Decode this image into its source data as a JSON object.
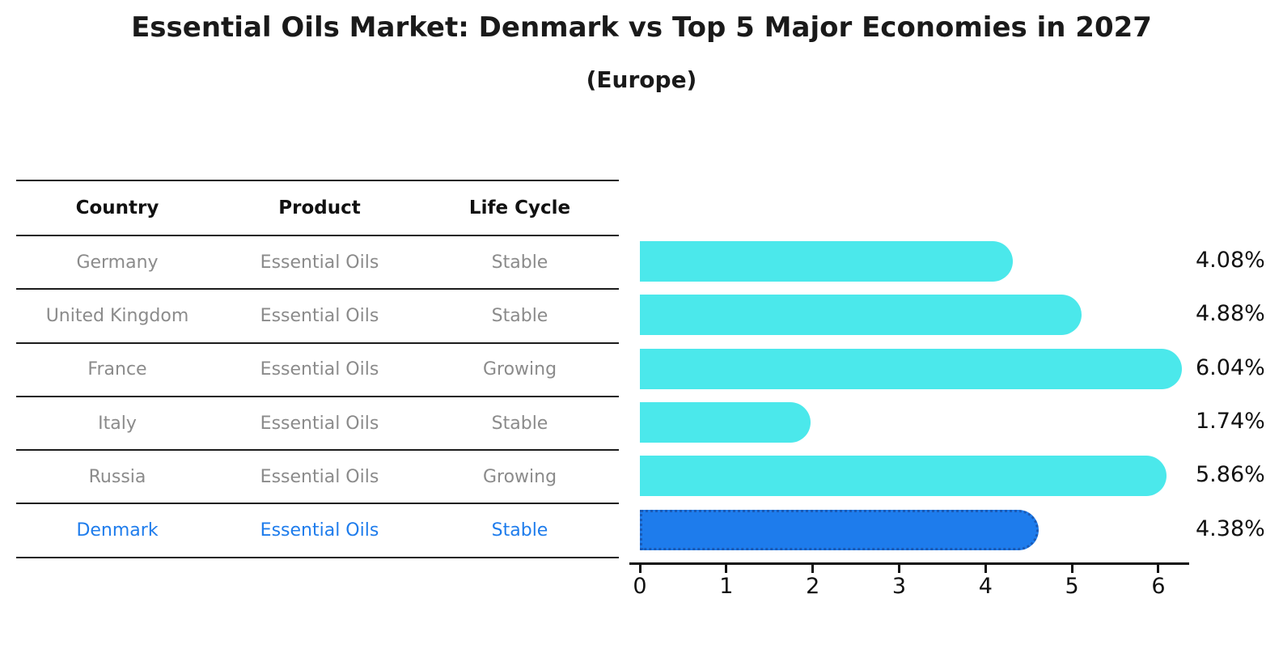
{
  "title": "Essential Oils Market: Denmark vs Top 5 Major Economies in 2027",
  "subtitle": "(Europe)",
  "table": {
    "headers": [
      "Country",
      "Product",
      "Life Cycle"
    ],
    "rows": [
      {
        "country": "Germany",
        "product": "Essential Oils",
        "life_cycle": "Stable",
        "highlight": false
      },
      {
        "country": "United Kingdom",
        "product": "Essential Oils",
        "life_cycle": "Stable",
        "highlight": false
      },
      {
        "country": "France",
        "product": "Essential Oils",
        "life_cycle": "Growing",
        "highlight": false
      },
      {
        "country": "Italy",
        "product": "Essential Oils",
        "life_cycle": "Stable",
        "highlight": false
      },
      {
        "country": "Russia",
        "product": "Essential Oils",
        "life_cycle": "Growing",
        "highlight": false
      },
      {
        "country": "Denmark",
        "product": "Essential Oils",
        "life_cycle": "Stable",
        "highlight": true
      }
    ]
  },
  "chart_data": {
    "type": "bar",
    "orientation": "horizontal",
    "title": "Essential Oils Market: Denmark vs Top 5 Major Economies in 2027 (Europe)",
    "categories": [
      "Germany",
      "United Kingdom",
      "France",
      "Italy",
      "Russia",
      "Denmark"
    ],
    "values": [
      4.08,
      4.88,
      6.04,
      1.74,
      5.86,
      4.38
    ],
    "value_labels": [
      "4.08%",
      "4.88%",
      "6.04%",
      "1.74%",
      "5.86%",
      "4.38%"
    ],
    "xlabel": "",
    "ylabel": "",
    "xticks": [
      "0",
      "1",
      "2",
      "3",
      "4",
      "5",
      "6"
    ],
    "xlim": [
      0,
      6.35
    ],
    "grid": false,
    "legend": false,
    "bar_color": "#4be8eb",
    "highlight_index": 5,
    "highlight_color": "#1e7cec",
    "highlight_border_color": "#1a5ab5",
    "highlight_border_style": "dotted",
    "highlight_text_color": "#1e7cec"
  },
  "colors": {
    "background": "#ffffff",
    "title_text": "#1a1a1a",
    "header_text": "#111111",
    "row_text": "#8b8b8b",
    "rule_line": "#1c1c1c",
    "axis": "#111111"
  }
}
